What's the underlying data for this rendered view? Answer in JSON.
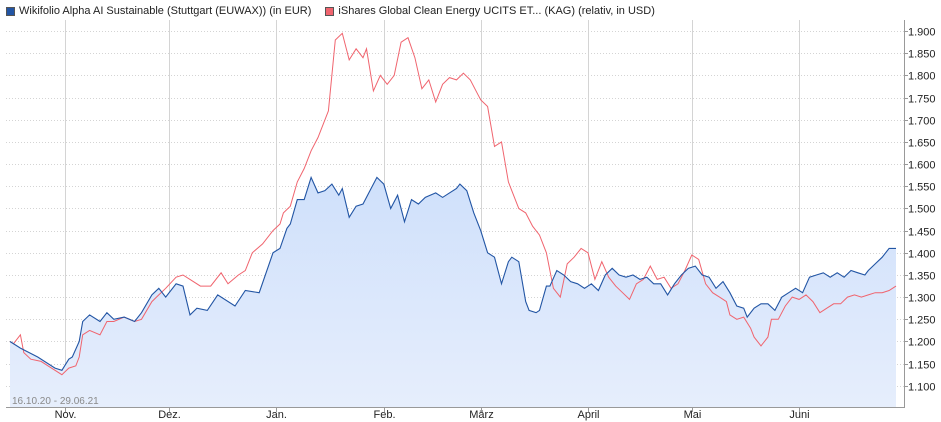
{
  "legend": {
    "series1": "Wikifolio Alpha AI Sustainable (Stuttgart (EUWAX)) (in EUR)",
    "series2": "iShares Global Clean Energy UCITS ET... (KAG) (relativ, in USD)"
  },
  "colors": {
    "series1": "#2255a4",
    "series2": "#f0646e",
    "grid": "#d4d4d4",
    "area_top": "#cfe0fb",
    "area_bottom": "#e6eefc"
  },
  "date_range": "16.10.20 - 29.06.21",
  "chart_data": {
    "type": "area",
    "y_axis": {
      "min": 1.05,
      "max": 1.925,
      "ticks": [
        1.1,
        1.15,
        1.2,
        1.25,
        1.3,
        1.35,
        1.4,
        1.45,
        1.5,
        1.55,
        1.6,
        1.65,
        1.7,
        1.75,
        1.8,
        1.85,
        1.9
      ],
      "tick_labels": [
        "1.100",
        "1.150",
        "1.200",
        "1.250",
        "1.300",
        "1.350",
        "1.400",
        "1.450",
        "1.500",
        "1.550",
        "1.600",
        "1.650",
        "1.700",
        "1.750",
        "1.800",
        "1.850",
        "1.900"
      ],
      "position": "right"
    },
    "x_axis": {
      "start": "2020-10-16",
      "end": "2021-06-29",
      "ticks": [
        {
          "date": "2020-11-01",
          "label": "Nov."
        },
        {
          "date": "2020-12-01",
          "label": "Dez."
        },
        {
          "date": "2021-01-01",
          "label": "Jan."
        },
        {
          "date": "2021-02-01",
          "label": "Feb."
        },
        {
          "date": "2021-03-01",
          "label": "März"
        },
        {
          "date": "2021-04-01",
          "label": "April"
        },
        {
          "date": "2021-05-01",
          "label": "Mai"
        },
        {
          "date": "2021-06-01",
          "label": "Juni"
        }
      ]
    },
    "grid": true,
    "legend_position": "top-left",
    "series": [
      {
        "name": "Wikifolio Alpha AI Sustainable (Stuttgart (EUWAX)) (in EUR)",
        "fill": true,
        "points": [
          [
            "2020-10-16",
            1.2
          ],
          [
            "2020-10-19",
            1.185
          ],
          [
            "2020-10-24",
            1.165
          ],
          [
            "2020-10-29",
            1.14
          ],
          [
            "2020-10-31",
            1.135
          ],
          [
            "2020-11-02",
            1.16
          ],
          [
            "2020-11-03",
            1.165
          ],
          [
            "2020-11-05",
            1.2
          ],
          [
            "2020-11-06",
            1.245
          ],
          [
            "2020-11-08",
            1.26
          ],
          [
            "2020-11-11",
            1.245
          ],
          [
            "2020-11-13",
            1.265
          ],
          [
            "2020-11-15",
            1.25
          ],
          [
            "2020-11-18",
            1.255
          ],
          [
            "2020-11-21",
            1.245
          ],
          [
            "2020-11-23",
            1.265
          ],
          [
            "2020-11-26",
            1.305
          ],
          [
            "2020-11-28",
            1.32
          ],
          [
            "2020-11-30",
            1.3
          ],
          [
            "2020-12-03",
            1.33
          ],
          [
            "2020-12-05",
            1.325
          ],
          [
            "2020-12-07",
            1.26
          ],
          [
            "2020-12-09",
            1.275
          ],
          [
            "2020-12-12",
            1.27
          ],
          [
            "2020-12-15",
            1.305
          ],
          [
            "2020-12-20",
            1.28
          ],
          [
            "2020-12-23",
            1.315
          ],
          [
            "2020-12-27",
            1.31
          ],
          [
            "2020-12-31",
            1.4
          ],
          [
            "2021-01-02",
            1.41
          ],
          [
            "2021-01-04",
            1.455
          ],
          [
            "2021-01-05",
            1.465
          ],
          [
            "2021-01-07",
            1.52
          ],
          [
            "2021-01-09",
            1.52
          ],
          [
            "2021-01-11",
            1.57
          ],
          [
            "2021-01-13",
            1.535
          ],
          [
            "2021-01-15",
            1.54
          ],
          [
            "2021-01-17",
            1.555
          ],
          [
            "2021-01-19",
            1.53
          ],
          [
            "2021-01-20",
            1.545
          ],
          [
            "2021-01-22",
            1.48
          ],
          [
            "2021-01-24",
            1.505
          ],
          [
            "2021-01-26",
            1.51
          ],
          [
            "2021-01-28",
            1.54
          ],
          [
            "2021-01-30",
            1.57
          ],
          [
            "2021-02-01",
            1.555
          ],
          [
            "2021-02-03",
            1.5
          ],
          [
            "2021-02-05",
            1.53
          ],
          [
            "2021-02-07",
            1.47
          ],
          [
            "2021-02-09",
            1.52
          ],
          [
            "2021-02-11",
            1.51
          ],
          [
            "2021-02-13",
            1.525
          ],
          [
            "2021-02-16",
            1.535
          ],
          [
            "2021-02-18",
            1.525
          ],
          [
            "2021-02-20",
            1.535
          ],
          [
            "2021-02-22",
            1.545
          ],
          [
            "2021-02-23",
            1.555
          ],
          [
            "2021-02-25",
            1.54
          ],
          [
            "2021-02-27",
            1.49
          ],
          [
            "2021-03-01",
            1.45
          ],
          [
            "2021-03-03",
            1.4
          ],
          [
            "2021-03-05",
            1.39
          ],
          [
            "2021-03-07",
            1.33
          ],
          [
            "2021-03-09",
            1.38
          ],
          [
            "2021-03-10",
            1.39
          ],
          [
            "2021-03-12",
            1.38
          ],
          [
            "2021-03-14",
            1.29
          ],
          [
            "2021-03-15",
            1.27
          ],
          [
            "2021-03-17",
            1.265
          ],
          [
            "2021-03-18",
            1.27
          ],
          [
            "2021-03-20",
            1.325
          ],
          [
            "2021-03-21",
            1.325
          ],
          [
            "2021-03-23",
            1.36
          ],
          [
            "2021-03-25",
            1.35
          ],
          [
            "2021-03-27",
            1.335
          ],
          [
            "2021-03-29",
            1.33
          ],
          [
            "2021-03-31",
            1.32
          ],
          [
            "2021-04-02",
            1.33
          ],
          [
            "2021-04-04",
            1.315
          ],
          [
            "2021-04-06",
            1.35
          ],
          [
            "2021-04-08",
            1.365
          ],
          [
            "2021-04-10",
            1.35
          ],
          [
            "2021-04-12",
            1.345
          ],
          [
            "2021-04-14",
            1.35
          ],
          [
            "2021-04-16",
            1.34
          ],
          [
            "2021-04-18",
            1.345
          ],
          [
            "2021-04-20",
            1.33
          ],
          [
            "2021-04-22",
            1.33
          ],
          [
            "2021-04-24",
            1.305
          ],
          [
            "2021-04-26",
            1.33
          ],
          [
            "2021-04-28",
            1.35
          ],
          [
            "2021-04-30",
            1.365
          ],
          [
            "2021-05-02",
            1.37
          ],
          [
            "2021-05-04",
            1.35
          ],
          [
            "2021-05-06",
            1.345
          ],
          [
            "2021-05-08",
            1.32
          ],
          [
            "2021-05-10",
            1.335
          ],
          [
            "2021-05-12",
            1.31
          ],
          [
            "2021-05-14",
            1.28
          ],
          [
            "2021-05-16",
            1.275
          ],
          [
            "2021-05-17",
            1.255
          ],
          [
            "2021-05-19",
            1.275
          ],
          [
            "2021-05-21",
            1.285
          ],
          [
            "2021-05-23",
            1.285
          ],
          [
            "2021-05-25",
            1.27
          ],
          [
            "2021-05-27",
            1.3
          ],
          [
            "2021-05-29",
            1.31
          ],
          [
            "2021-05-31",
            1.32
          ],
          [
            "2021-06-02",
            1.31
          ],
          [
            "2021-06-04",
            1.345
          ],
          [
            "2021-06-06",
            1.35
          ],
          [
            "2021-06-08",
            1.355
          ],
          [
            "2021-06-10",
            1.345
          ],
          [
            "2021-06-12",
            1.355
          ],
          [
            "2021-06-14",
            1.345
          ],
          [
            "2021-06-16",
            1.36
          ],
          [
            "2021-06-18",
            1.355
          ],
          [
            "2021-06-20",
            1.35
          ],
          [
            "2021-06-21",
            1.36
          ],
          [
            "2021-06-23",
            1.375
          ],
          [
            "2021-06-25",
            1.39
          ],
          [
            "2021-06-27",
            1.41
          ],
          [
            "2021-06-29",
            1.41
          ]
        ]
      },
      {
        "name": "iShares Global Clean Energy UCITS ET... (KAG) (relativ, in USD)",
        "fill": false,
        "points": [
          [
            "2020-10-16",
            1.2
          ],
          [
            "2020-10-17",
            1.195
          ],
          [
            "2020-10-19",
            1.215
          ],
          [
            "2020-10-20",
            1.175
          ],
          [
            "2020-10-22",
            1.16
          ],
          [
            "2020-10-25",
            1.155
          ],
          [
            "2020-10-27",
            1.145
          ],
          [
            "2020-10-29",
            1.135
          ],
          [
            "2020-10-31",
            1.125
          ],
          [
            "2020-11-02",
            1.14
          ],
          [
            "2020-11-04",
            1.145
          ],
          [
            "2020-11-05",
            1.165
          ],
          [
            "2020-11-06",
            1.215
          ],
          [
            "2020-11-08",
            1.225
          ],
          [
            "2020-11-11",
            1.215
          ],
          [
            "2020-11-13",
            1.245
          ],
          [
            "2020-11-15",
            1.245
          ],
          [
            "2020-11-18",
            1.255
          ],
          [
            "2020-11-21",
            1.245
          ],
          [
            "2020-11-23",
            1.25
          ],
          [
            "2020-11-26",
            1.29
          ],
          [
            "2020-11-28",
            1.305
          ],
          [
            "2020-11-30",
            1.32
          ],
          [
            "2020-12-03",
            1.345
          ],
          [
            "2020-12-05",
            1.35
          ],
          [
            "2020-12-07",
            1.34
          ],
          [
            "2020-12-10",
            1.325
          ],
          [
            "2020-12-13",
            1.325
          ],
          [
            "2020-12-16",
            1.355
          ],
          [
            "2020-12-18",
            1.33
          ],
          [
            "2020-12-21",
            1.35
          ],
          [
            "2020-12-23",
            1.36
          ],
          [
            "2020-12-25",
            1.4
          ],
          [
            "2020-12-28",
            1.42
          ],
          [
            "2020-12-31",
            1.45
          ],
          [
            "2021-01-02",
            1.465
          ],
          [
            "2021-01-03",
            1.49
          ],
          [
            "2021-01-05",
            1.505
          ],
          [
            "2021-01-07",
            1.56
          ],
          [
            "2021-01-09",
            1.59
          ],
          [
            "2021-01-11",
            1.63
          ],
          [
            "2021-01-13",
            1.66
          ],
          [
            "2021-01-14",
            1.68
          ],
          [
            "2021-01-16",
            1.72
          ],
          [
            "2021-01-18",
            1.88
          ],
          [
            "2021-01-20",
            1.895
          ],
          [
            "2021-01-22",
            1.835
          ],
          [
            "2021-01-24",
            1.86
          ],
          [
            "2021-01-26",
            1.84
          ],
          [
            "2021-01-27",
            1.86
          ],
          [
            "2021-01-29",
            1.765
          ],
          [
            "2021-01-31",
            1.8
          ],
          [
            "2021-02-02",
            1.78
          ],
          [
            "2021-02-04",
            1.8
          ],
          [
            "2021-02-06",
            1.875
          ],
          [
            "2021-02-08",
            1.885
          ],
          [
            "2021-02-10",
            1.84
          ],
          [
            "2021-02-12",
            1.77
          ],
          [
            "2021-02-14",
            1.79
          ],
          [
            "2021-02-16",
            1.74
          ],
          [
            "2021-02-18",
            1.78
          ],
          [
            "2021-02-20",
            1.795
          ],
          [
            "2021-02-22",
            1.79
          ],
          [
            "2021-02-24",
            1.805
          ],
          [
            "2021-02-26",
            1.79
          ],
          [
            "2021-02-28",
            1.76
          ],
          [
            "2021-03-01",
            1.745
          ],
          [
            "2021-03-03",
            1.73
          ],
          [
            "2021-03-05",
            1.64
          ],
          [
            "2021-03-07",
            1.65
          ],
          [
            "2021-03-09",
            1.56
          ],
          [
            "2021-03-10",
            1.54
          ],
          [
            "2021-03-12",
            1.5
          ],
          [
            "2021-03-14",
            1.49
          ],
          [
            "2021-03-16",
            1.46
          ],
          [
            "2021-03-18",
            1.44
          ],
          [
            "2021-03-20",
            1.4
          ],
          [
            "2021-03-22",
            1.32
          ],
          [
            "2021-03-24",
            1.3
          ],
          [
            "2021-03-26",
            1.375
          ],
          [
            "2021-03-28",
            1.39
          ],
          [
            "2021-03-30",
            1.41
          ],
          [
            "2021-04-01",
            1.4
          ],
          [
            "2021-04-03",
            1.34
          ],
          [
            "2021-04-05",
            1.38
          ],
          [
            "2021-04-07",
            1.345
          ],
          [
            "2021-04-09",
            1.325
          ],
          [
            "2021-04-11",
            1.31
          ],
          [
            "2021-04-13",
            1.295
          ],
          [
            "2021-04-15",
            1.33
          ],
          [
            "2021-04-17",
            1.34
          ],
          [
            "2021-04-19",
            1.37
          ],
          [
            "2021-04-21",
            1.34
          ],
          [
            "2021-04-23",
            1.345
          ],
          [
            "2021-04-25",
            1.32
          ],
          [
            "2021-04-27",
            1.33
          ],
          [
            "2021-04-29",
            1.36
          ],
          [
            "2021-05-01",
            1.395
          ],
          [
            "2021-05-03",
            1.385
          ],
          [
            "2021-05-05",
            1.33
          ],
          [
            "2021-05-07",
            1.31
          ],
          [
            "2021-05-09",
            1.3
          ],
          [
            "2021-05-11",
            1.29
          ],
          [
            "2021-05-12",
            1.26
          ],
          [
            "2021-05-14",
            1.25
          ],
          [
            "2021-05-16",
            1.255
          ],
          [
            "2021-05-18",
            1.23
          ],
          [
            "2021-05-19",
            1.21
          ],
          [
            "2021-05-21",
            1.19
          ],
          [
            "2021-05-23",
            1.21
          ],
          [
            "2021-05-24",
            1.25
          ],
          [
            "2021-05-26",
            1.25
          ],
          [
            "2021-05-28",
            1.28
          ],
          [
            "2021-05-30",
            1.3
          ],
          [
            "2021-06-01",
            1.295
          ],
          [
            "2021-06-03",
            1.305
          ],
          [
            "2021-06-05",
            1.29
          ],
          [
            "2021-06-07",
            1.265
          ],
          [
            "2021-06-09",
            1.275
          ],
          [
            "2021-06-11",
            1.285
          ],
          [
            "2021-06-13",
            1.285
          ],
          [
            "2021-06-15",
            1.3
          ],
          [
            "2021-06-17",
            1.305
          ],
          [
            "2021-06-19",
            1.3
          ],
          [
            "2021-06-21",
            1.305
          ],
          [
            "2021-06-23",
            1.31
          ],
          [
            "2021-06-25",
            1.31
          ],
          [
            "2021-06-27",
            1.315
          ],
          [
            "2021-06-29",
            1.325
          ]
        ]
      }
    ]
  }
}
